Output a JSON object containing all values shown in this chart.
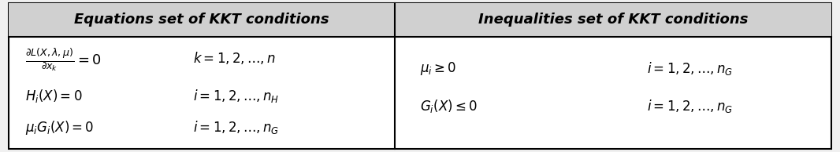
{
  "figsize": [
    10.66,
    1.94
  ],
  "dpi": 100,
  "bg_color": "#f0f0f0",
  "cell_bg": "#ffffff",
  "header_bg": "#d0d0d0",
  "border_color": "#000000",
  "col_split": 0.47,
  "header_text_left": "Equations set of KKT conditions",
  "header_text_right": "Inequalities set of KKT conditions",
  "header_fontsize": 13,
  "body_fontsize": 12
}
